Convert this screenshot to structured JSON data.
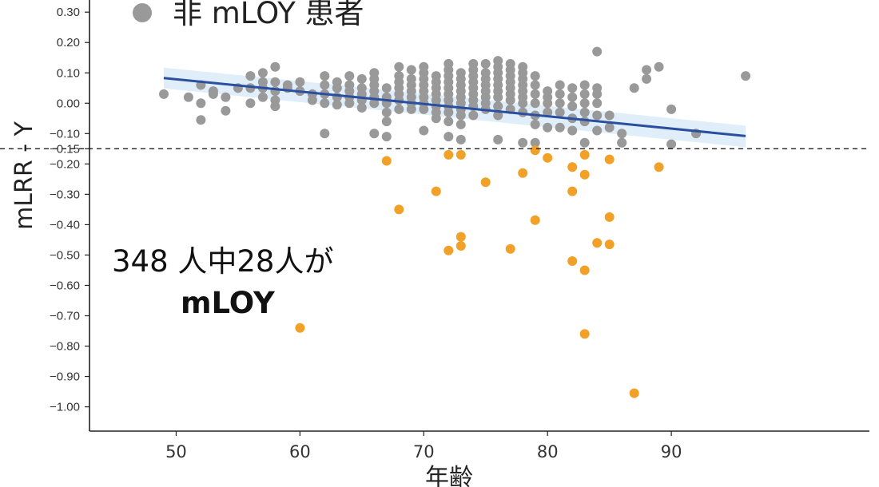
{
  "chart_data": {
    "type": "scatter",
    "xlabel": "年齢",
    "ylabel": "mLRR - Y",
    "xlim": [
      43,
      106
    ],
    "ylim": [
      -1.08,
      0.34
    ],
    "x_ticks": [
      50,
      60,
      70,
      80,
      90
    ],
    "y_ticks": [
      0.3,
      0.2,
      0.1,
      0.0,
      -0.1,
      -0.15,
      -0.2,
      -0.3,
      -0.4,
      -0.5,
      -0.6,
      -0.7,
      -0.8,
      -0.9,
      -1.0
    ],
    "y_tick_labels": [
      "0.30",
      "0.20",
      "0.10",
      "0.00",
      "−0.10",
      "−0.15",
      "−0.20",
      "−0.30",
      "−0.40",
      "−0.50",
      "−0.60",
      "−0.70",
      "−0.80",
      "−0.90",
      "−1.00"
    ],
    "threshold": -0.15,
    "grid": false,
    "legend": {
      "entries": [
        {
          "label": "非 mLOY 患者",
          "color": "#999999"
        }
      ],
      "position": "top-left"
    },
    "annotation": {
      "line1": "348 人中28人が",
      "line2": "mLOY"
    },
    "trend_line": {
      "color": "#2a4fa0",
      "band_color": "#d6e8f7",
      "x": [
        49,
        96
      ],
      "y": [
        0.083,
        -0.108
      ]
    },
    "series": [
      {
        "color": "#999999",
        "x": [
          49,
          51,
          52,
          52,
          52,
          53,
          53,
          54,
          54,
          55,
          56,
          56,
          56,
          57,
          57,
          57,
          57,
          58,
          58,
          58,
          58,
          58,
          59,
          59,
          60,
          60,
          61,
          61,
          62,
          62,
          62,
          62,
          63,
          63,
          63,
          63,
          64,
          64,
          64,
          64,
          64,
          65,
          65,
          65,
          65,
          65,
          66,
          66,
          66,
          66,
          66,
          66,
          67,
          67,
          67,
          67,
          67,
          68,
          68,
          68,
          68,
          68,
          68,
          68,
          69,
          69,
          69,
          69,
          69,
          69,
          69,
          70,
          70,
          70,
          70,
          70,
          70,
          70,
          70,
          71,
          71,
          71,
          71,
          71,
          71,
          71,
          71,
          72,
          72,
          72,
          72,
          72,
          72,
          72,
          72,
          72,
          72,
          73,
          73,
          73,
          73,
          73,
          73,
          73,
          73,
          73,
          74,
          74,
          74,
          74,
          74,
          74,
          74,
          74,
          74,
          75,
          75,
          75,
          75,
          75,
          75,
          75,
          75,
          76,
          76,
          76,
          76,
          76,
          76,
          76,
          76,
          76,
          77,
          77,
          77,
          77,
          77,
          77,
          77,
          77,
          78,
          78,
          78,
          78,
          78,
          78,
          78,
          78,
          79,
          79,
          79,
          79,
          79,
          79,
          80,
          80,
          80,
          80,
          80,
          81,
          81,
          81,
          81,
          81,
          82,
          82,
          82,
          82,
          82,
          83,
          83,
          83,
          83,
          83,
          84,
          84,
          84,
          84,
          84,
          84,
          85,
          85,
          86,
          86,
          87,
          88,
          88,
          89,
          90,
          90,
          92,
          96,
          62,
          66,
          67,
          70,
          72,
          73,
          76,
          78,
          79,
          83,
          86
        ],
        "y": [
          0.03,
          0.02,
          0.06,
          0.0,
          -0.055,
          0.04,
          0.03,
          0.02,
          -0.025,
          0.05,
          0.09,
          0.05,
          0.0,
          0.1,
          0.07,
          0.05,
          0.02,
          -0.01,
          0.12,
          0.07,
          0.04,
          0.01,
          0.06,
          0.05,
          0.07,
          0.04,
          0.03,
          0.01,
          0.09,
          0.06,
          0.03,
          0.0,
          0.07,
          0.05,
          0.02,
          -0.005,
          0.09,
          0.06,
          0.04,
          0.02,
          0.0,
          0.08,
          0.05,
          0.03,
          0.01,
          -0.015,
          0.1,
          0.08,
          0.06,
          0.04,
          0.02,
          0.0,
          0.05,
          0.02,
          0.0,
          -0.03,
          -0.06,
          0.12,
          0.09,
          0.07,
          0.05,
          0.03,
          0.01,
          -0.02,
          0.11,
          0.08,
          0.06,
          0.04,
          0.02,
          0.0,
          -0.02,
          0.12,
          0.1,
          0.08,
          0.06,
          0.04,
          0.02,
          0.0,
          -0.02,
          0.09,
          0.07,
          0.05,
          0.03,
          0.01,
          -0.01,
          -0.03,
          -0.05,
          0.13,
          0.11,
          0.09,
          0.07,
          0.05,
          0.03,
          0.01,
          -0.01,
          -0.03,
          -0.06,
          0.1,
          0.08,
          0.06,
          0.04,
          0.02,
          0.0,
          -0.02,
          -0.04,
          -0.07,
          0.13,
          0.11,
          0.09,
          0.07,
          0.05,
          0.03,
          0.01,
          -0.01,
          -0.04,
          0.13,
          0.1,
          0.08,
          0.06,
          0.04,
          0.02,
          0.0,
          -0.02,
          0.14,
          0.12,
          0.1,
          0.08,
          0.06,
          0.04,
          0.02,
          -0.01,
          -0.04,
          0.13,
          0.11,
          0.09,
          0.07,
          0.05,
          0.03,
          0.01,
          -0.02,
          0.12,
          0.1,
          0.08,
          0.06,
          0.04,
          0.02,
          0.0,
          -0.03,
          0.09,
          0.06,
          0.03,
          0.0,
          -0.04,
          -0.07,
          0.04,
          0.02,
          0.0,
          -0.03,
          -0.08,
          0.06,
          0.03,
          0.0,
          -0.03,
          -0.08,
          0.05,
          0.02,
          -0.01,
          -0.05,
          -0.09,
          0.06,
          0.03,
          0.0,
          -0.03,
          -0.06,
          0.17,
          0.05,
          0.03,
          0.0,
          -0.04,
          -0.09,
          -0.04,
          -0.08,
          -0.1,
          -0.13,
          0.05,
          0.11,
          0.08,
          0.12,
          -0.02,
          -0.135,
          -0.1,
          0.09,
          -0.1,
          -0.1,
          -0.11,
          -0.09,
          -0.11,
          -0.12,
          -0.12,
          -0.13,
          -0.13,
          -0.13,
          -0.13
        ]
      },
      {
        "color": "#f2a128",
        "x": [
          60,
          67,
          68,
          71,
          72,
          72,
          73,
          73,
          73,
          75,
          77,
          78,
          79,
          79,
          80,
          82,
          82,
          82,
          83,
          83,
          83,
          83,
          84,
          85,
          85,
          85,
          87,
          89
        ],
        "y": [
          -0.74,
          -0.19,
          -0.35,
          -0.29,
          -0.485,
          -0.17,
          -0.44,
          -0.47,
          -0.17,
          -0.26,
          -0.48,
          -0.23,
          -0.385,
          -0.155,
          -0.18,
          -0.21,
          -0.29,
          -0.52,
          -0.17,
          -0.235,
          -0.55,
          -0.76,
          -0.46,
          -0.375,
          -0.465,
          -0.185,
          -0.955,
          -0.21
        ]
      }
    ]
  }
}
